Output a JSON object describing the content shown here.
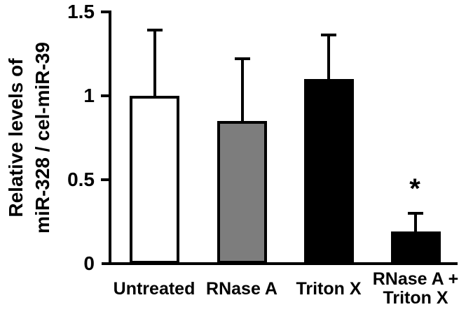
{
  "chart_data": {
    "type": "bar",
    "title": "",
    "ylabel_lines": [
      "Relative levels of",
      "miR-328 / cel-miR-39"
    ],
    "xlabel": "",
    "categories": [
      "Untreated",
      "RNase A",
      "Triton X",
      "RNase A +\nTriton X"
    ],
    "values": [
      1.0,
      0.85,
      1.1,
      0.19
    ],
    "errors": [
      0.4,
      0.38,
      0.27,
      0.12
    ],
    "error_bar_direction": "upper-only",
    "bar_colors": [
      "#ffffff",
      "#7d7d7d",
      "#000000",
      "#000000"
    ],
    "bar_border_color": "#000000",
    "yticks": [
      0,
      0.5,
      1,
      1.5
    ],
    "ytick_labels": [
      "0",
      "0.5",
      "1",
      "1.5"
    ],
    "ylim": [
      0,
      1.5
    ],
    "grid": false,
    "legend": null,
    "annotations": [
      {
        "text": "*",
        "category": "RNase A +\nTriton X",
        "meaning": "statistically-significant"
      }
    ]
  }
}
